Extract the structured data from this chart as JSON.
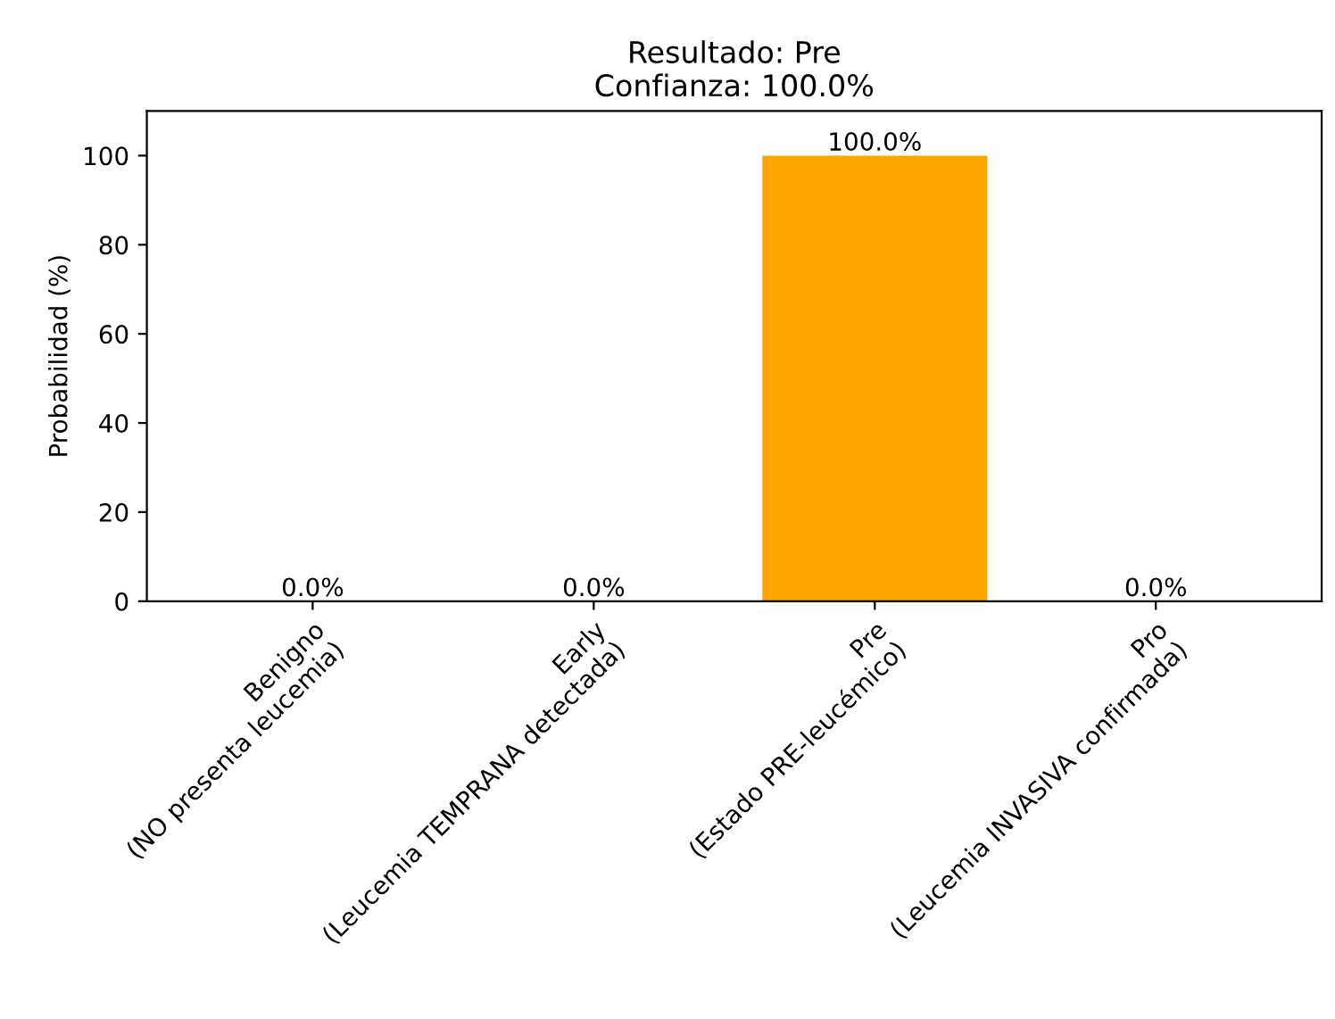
{
  "chart_data": {
    "type": "bar",
    "title": "Resultado: Pre\nConfianza: 100.0%",
    "ylabel": "Probabilidad (%)",
    "categories": [
      "Benigno\n(NO presenta leucemia)",
      "Early\n(Leucemia TEMPRANA detectada)",
      "Pre\n(Estado PRE-leucémico)",
      "Pro\n(Leucemia INVASIVA confirmada)"
    ],
    "values": [
      0,
      0,
      100,
      0
    ],
    "value_labels": [
      "0.0%",
      "0.0%",
      "100.0%",
      "0.0%"
    ],
    "color": "#ffa500",
    "ylim": [
      0,
      110
    ],
    "yticks": [
      0,
      20,
      40,
      60,
      80,
      100
    ],
    "grid": false
  }
}
